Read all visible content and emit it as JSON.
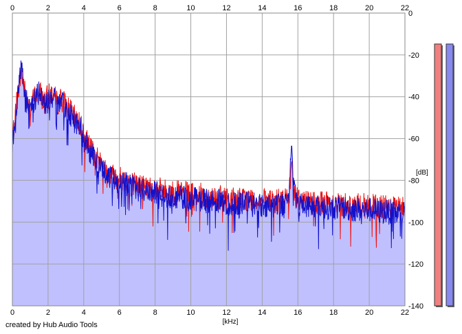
{
  "footer": {
    "credit": "created by Hub Audio Tools"
  },
  "chart_data": {
    "type": "area",
    "xlabel": "[kHz]",
    "ylabel": "[dB]",
    "xlim": [
      0,
      22
    ],
    "ylim": [
      -140,
      0
    ],
    "x_ticks": [
      "0",
      "2",
      "4",
      "6",
      "8",
      "10",
      "12",
      "14",
      "16",
      "18",
      "20",
      "22"
    ],
    "y_ticks": [
      "0",
      "-20",
      "-40",
      "-60",
      "-80",
      "-100",
      "-120",
      "-140"
    ],
    "grid": true,
    "series": [
      {
        "color": "#ee1111",
        "x": [
          0,
          0.25,
          0.5,
          0.75,
          1,
          1.25,
          1.5,
          1.75,
          2,
          2.25,
          2.5,
          2.75,
          3,
          3.25,
          3.5,
          3.75,
          4,
          4.25,
          4.5,
          4.75,
          5,
          5.25,
          5.5,
          5.75,
          6,
          6.5,
          7,
          7.5,
          8,
          8.5,
          9,
          9.5,
          10,
          10.5,
          11,
          11.5,
          12,
          12.5,
          13,
          13.5,
          14,
          14.5,
          15,
          15.25,
          15.5,
          15.65,
          15.8,
          16,
          16.5,
          17,
          17.5,
          18,
          18.5,
          19,
          19.5,
          20,
          20.5,
          21,
          21.5,
          22
        ],
        "values": [
          -60,
          -42,
          -28,
          -40,
          -45,
          -40,
          -38,
          -42,
          -40,
          -38,
          -43,
          -41,
          -44,
          -47,
          -50,
          -52,
          -58,
          -63,
          -66,
          -70,
          -72,
          -75,
          -77,
          -78,
          -79,
          -80,
          -82,
          -83,
          -84,
          -85,
          -86,
          -86,
          -87,
          -87,
          -88,
          -88,
          -89,
          -89,
          -89,
          -89,
          -90,
          -90,
          -90,
          -89,
          -88,
          -70,
          -85,
          -89,
          -90,
          -90,
          -91,
          -91,
          -91,
          -92,
          -92,
          -92,
          -93,
          -93,
          -94,
          -93
        ]
      },
      {
        "color": "#1111cc",
        "x": [
          0,
          0.25,
          0.5,
          0.75,
          1,
          1.25,
          1.5,
          1.75,
          2,
          2.25,
          2.5,
          2.75,
          3,
          3.25,
          3.5,
          3.75,
          4,
          4.25,
          4.5,
          4.75,
          5,
          5.25,
          5.5,
          5.75,
          6,
          6.5,
          7,
          7.5,
          8,
          8.5,
          9,
          9.5,
          10,
          10.5,
          11,
          11.5,
          12,
          12.5,
          13,
          13.5,
          14,
          14.5,
          15,
          15.25,
          15.5,
          15.65,
          15.8,
          16,
          16.5,
          17,
          17.5,
          18,
          18.5,
          19,
          19.5,
          20,
          20.5,
          21,
          21.5,
          22
        ],
        "values": [
          -62,
          -44,
          -24,
          -42,
          -46,
          -42,
          -36,
          -44,
          -42,
          -40,
          -44,
          -43,
          -46,
          -48,
          -52,
          -54,
          -60,
          -65,
          -68,
          -72,
          -74,
          -77,
          -79,
          -80,
          -81,
          -82,
          -84,
          -85,
          -86,
          -87,
          -88,
          -88,
          -89,
          -89,
          -90,
          -90,
          -91,
          -91,
          -91,
          -91,
          -92,
          -92,
          -92,
          -91,
          -86,
          -62,
          -86,
          -91,
          -92,
          -92,
          -93,
          -93,
          -93,
          -94,
          -94,
          -94,
          -95,
          -95,
          -96,
          -95
        ]
      }
    ],
    "level_meters": [
      {
        "color": "#f08080",
        "level_db": -14
      },
      {
        "color": "#8888ee",
        "level_db": -14
      }
    ]
  }
}
